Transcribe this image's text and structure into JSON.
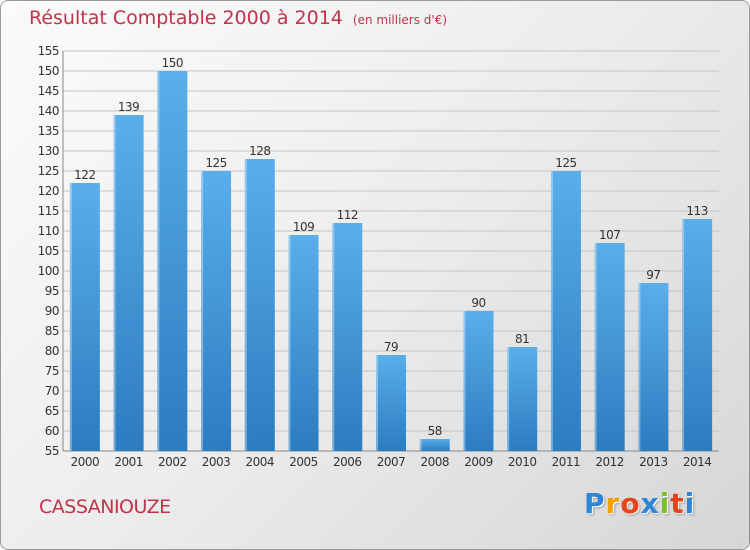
{
  "title": "Résultat Comptable 2000 à 2014",
  "subtitle": "(en milliers d'€)",
  "city": "CASSANIOUZE",
  "logo": {
    "letters": [
      "P",
      "r",
      "o",
      "x",
      "i",
      "t",
      "i"
    ],
    "colors": [
      "#2e86d6",
      "#f2a100",
      "#e8431a",
      "#2e86d6",
      "#7bbf2a",
      "#e8431a",
      "#2e86d6"
    ]
  },
  "colors": {
    "title": "#c0334a",
    "bar_top": "#5aaeea",
    "bar_bottom": "#2c7cc0"
  },
  "chart_data": {
    "type": "bar",
    "categories": [
      "2000",
      "2001",
      "2002",
      "2003",
      "2004",
      "2005",
      "2006",
      "2007",
      "2008",
      "2009",
      "2010",
      "2011",
      "2012",
      "2013",
      "2014"
    ],
    "values": [
      122,
      139,
      150,
      125,
      128,
      109,
      112,
      79,
      58,
      90,
      81,
      125,
      107,
      97,
      113
    ],
    "title": "Résultat Comptable 2000 à 2014",
    "xlabel": "",
    "ylabel": "",
    "ylim": [
      55,
      155
    ],
    "ytick_step": 5,
    "grid": true,
    "data_labels": true
  }
}
